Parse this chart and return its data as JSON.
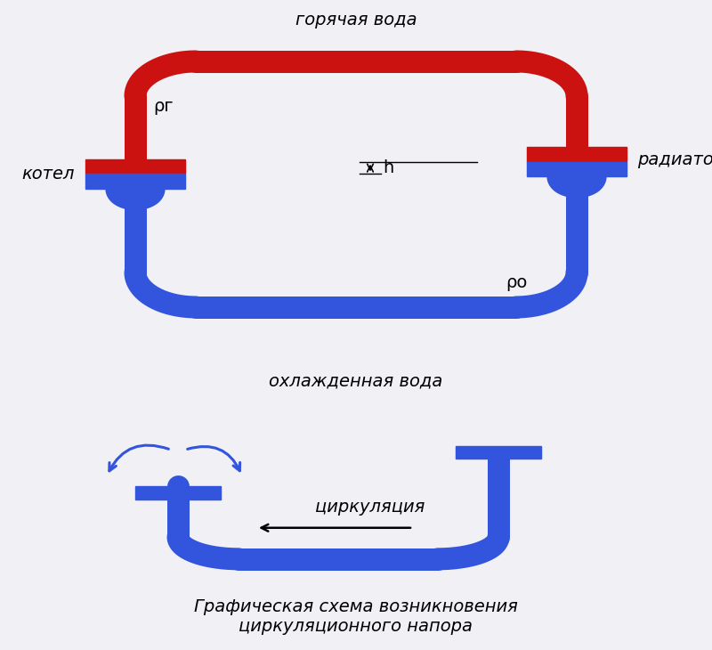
{
  "bg_color": "#f0f0f5",
  "red_color": "#cc1111",
  "blue_color": "#3355dd",
  "blue_dark": "#2244bb",
  "line_width": 18,
  "title_top": "горячая вода",
  "title_bottom_top": "охлажденная вода",
  "label_kotel": "котел",
  "label_radiatory": "радиаторы",
  "label_rho_g": "ρг",
  "label_rho_o": "ρо",
  "label_h": "h",
  "label_tsirk": "циркуляция",
  "caption": "Графическая схема возникновения\nциркуляционного напора"
}
